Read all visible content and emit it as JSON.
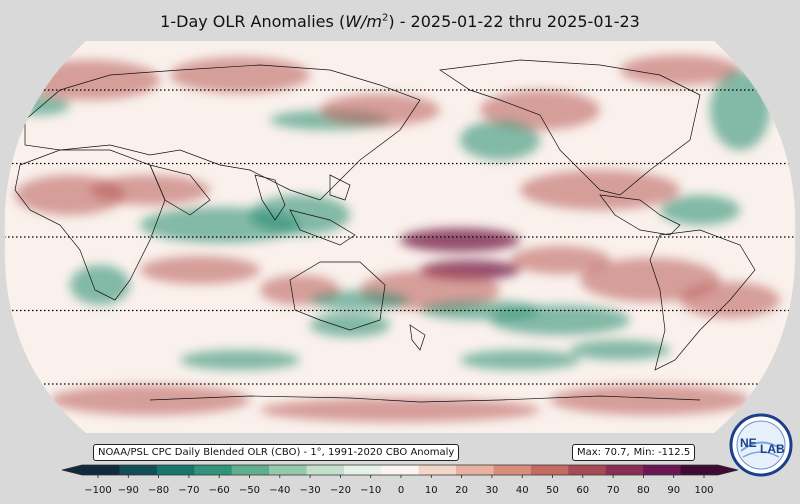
{
  "title": {
    "prefix": "1-Day OLR Anomalies (",
    "unit_var": "W/m",
    "unit_exp": "2",
    "suffix": ") - 2025-01-22 thru 2025-01-23"
  },
  "source_note": "NOAA/PSL CPC Daily Blended OLR (CBO) - 1°, 1991-2020 CBO Anomaly",
  "stats": {
    "max_label": "Max: 70.7,",
    "min_label": "Min: -112.5"
  },
  "colorbar": {
    "ticks": [
      "−100",
      "−90",
      "−80",
      "−70",
      "−60",
      "−50",
      "−40",
      "−30",
      "−20",
      "−10",
      "0",
      "10",
      "20",
      "30",
      "40",
      "50",
      "60",
      "70",
      "80",
      "90",
      "100"
    ],
    "stops": [
      "#0f2a3d",
      "#124e58",
      "#15766b",
      "#2f9479",
      "#5fae8f",
      "#93c9ac",
      "#c3e0cc",
      "#e6f1ea",
      "#fbf4f0",
      "#f2d6c8",
      "#e7b3a0",
      "#d98d7b",
      "#c46a61",
      "#a84a55",
      "#8a2e56",
      "#6b1657",
      "#3d0b34"
    ]
  },
  "map": {
    "projection": "Robinson",
    "center_longitude": 180,
    "latitude_lines": [
      60,
      30,
      0,
      -30,
      -60
    ],
    "palette": {
      "negative": "#1f8a6e",
      "neutral": "#faf1ec",
      "positive": "#b85a55",
      "strong_positive": "#7a2550"
    }
  },
  "logo": {
    "text_a": "NE",
    "text_b": "LAB",
    "ring_color": "#1a3f8c"
  }
}
